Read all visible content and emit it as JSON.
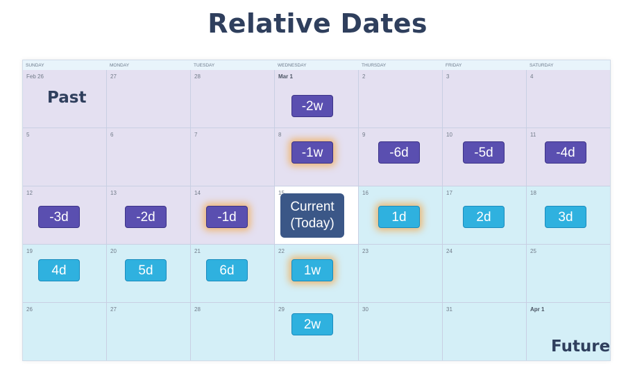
{
  "title": "Relative Dates",
  "labels": {
    "past": "Past",
    "future": "Future"
  },
  "weekdays": [
    "SUNDAY",
    "MONDAY",
    "TUESDAY",
    "WEDNESDAY",
    "THURSDAY",
    "FRIDAY",
    "SATURDAY"
  ],
  "days": [
    [
      "Feb 26",
      "27",
      "28",
      "Mar 1",
      "2",
      "3",
      "4"
    ],
    [
      "5",
      "6",
      "7",
      "8",
      "9",
      "10",
      "11"
    ],
    [
      "12",
      "13",
      "14",
      "15",
      "16",
      "17",
      "18"
    ],
    [
      "19",
      "20",
      "21",
      "22",
      "23",
      "24",
      "25"
    ],
    [
      "26",
      "27",
      "28",
      "29",
      "30",
      "31",
      "Apr 1"
    ]
  ],
  "current": {
    "line1": "Current",
    "line2": "(Today)"
  },
  "chips": {
    "w0_wed": "-2w",
    "w1_wed": "-1w",
    "w1_thu": "-6d",
    "w1_fri": "-5d",
    "w1_sat": "-4d",
    "w2_sun": "-3d",
    "w2_mon": "-2d",
    "w2_tue": "-1d",
    "w2_thu": "1d",
    "w2_fri": "2d",
    "w2_sat": "3d",
    "w3_sun": "4d",
    "w3_mon": "5d",
    "w3_tue": "6d",
    "w3_wed": "1w",
    "w4_wed": "2w"
  },
  "colors": {
    "past_bg": "#e4e0f1",
    "future_bg": "#d4eff7",
    "past_chip": "#5a4fb0",
    "future_chip": "#2fb1df",
    "current": "#3b5787",
    "glow": "#f2aa50",
    "title": "#2f3f5d"
  }
}
